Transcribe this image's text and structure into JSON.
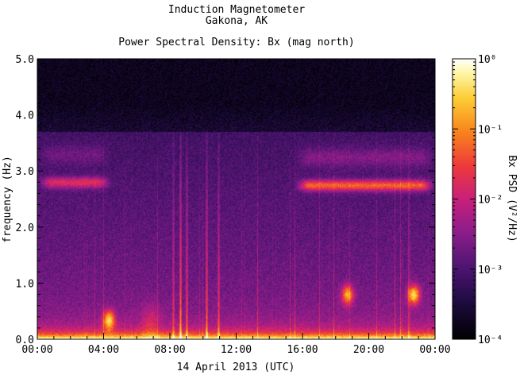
{
  "header": {
    "line1": "Induction Magnetometer",
    "line2": "Gakona, AK",
    "subtitle": "Power Spectral Density: Bx (mag north)"
  },
  "chart_data": {
    "type": "heatmap",
    "title": "Induction Magnetometer",
    "location": "Gakona, AK",
    "subtitle": "Power Spectral Density: Bx (mag north)",
    "xlabel": "14 April 2013 (UTC)",
    "ylabel": "frequency (Hz)",
    "colorbar_label": "Bx PSD (V²/Hz)",
    "x_ticks": [
      "00:00",
      "04:00",
      "08:00",
      "12:00",
      "16:00",
      "20:00",
      "00:00"
    ],
    "x_range_hours": [
      0,
      24
    ],
    "y_ticks": [
      "0.0",
      "1.0",
      "2.0",
      "3.0",
      "4.0",
      "5.0"
    ],
    "y_range_hz": [
      0,
      5
    ],
    "colorbar_ticks": [
      "10⁰",
      "10⁻¹",
      "10⁻²",
      "10⁻³",
      "10⁻⁴"
    ],
    "colorbar_range": [
      0.0001,
      1
    ],
    "colorbar_scale": "log",
    "colormap": [
      "#000000",
      "#1a0a3a",
      "#4b1470",
      "#8a1d8a",
      "#c8207a",
      "#ee3a3a",
      "#f8841c",
      "#fccd35",
      "#fdf6a8",
      "#ffffff"
    ],
    "features": [
      {
        "label": "Pc1 band",
        "t_start": 0.0,
        "t_end": 4.5,
        "f_center": 2.8,
        "level": 0.5
      },
      {
        "label": "Pc1 band",
        "t_start": 15.5,
        "t_end": 24.0,
        "f_center": 2.75,
        "level": 0.7
      },
      {
        "label": "low-frequency burst",
        "t_center": 4.3,
        "f_center": 0.35,
        "level": 0.85
      },
      {
        "label": "low-frequency burst",
        "t_center": 18.7,
        "f_center": 0.8,
        "level": 0.8
      },
      {
        "label": "low-frequency burst",
        "t_center": 22.7,
        "f_center": 0.8,
        "level": 0.95
      }
    ]
  }
}
